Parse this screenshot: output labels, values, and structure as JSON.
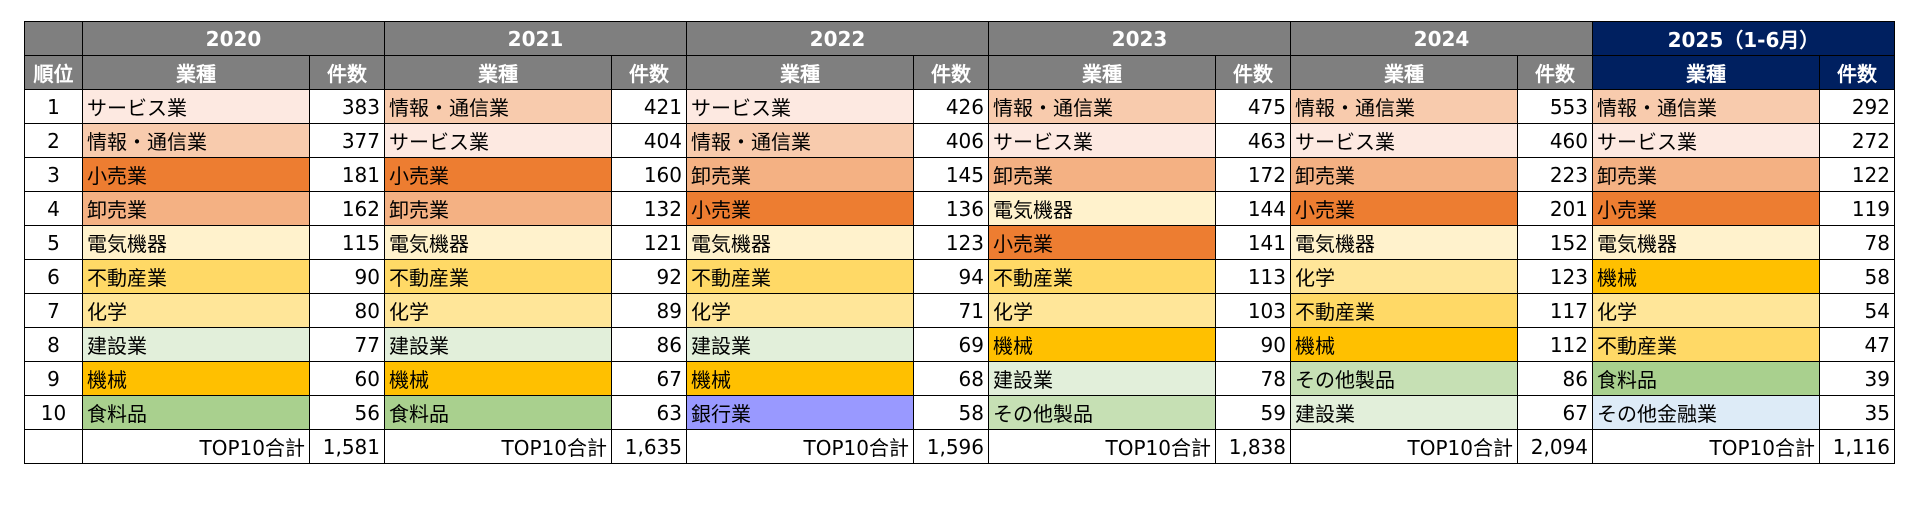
{
  "colors": {
    "サービス業": "#fde9e1",
    "情報・通信業": "#f8cbad",
    "小売業": "#ed7d31",
    "卸売業": "#f4b183",
    "電気機器": "#fff2cc",
    "不動産業": "#ffd966",
    "化学": "#ffe699",
    "建設業": "#e2efda",
    "機械": "#ffc000",
    "食料品": "#a9d08e",
    "銀行業": "#9999ff",
    "その他製品": "#c6e0b4",
    "その他金融業": "#ddebf7"
  },
  "table": {
    "header": {
      "rank_label": "順位",
      "industry_label": "業種",
      "count_label": "件数",
      "total_label": "TOP10合計"
    },
    "years": [
      {
        "label": "2020",
        "highlight": false,
        "total": "1,581",
        "rows": [
          [
            "サービス業",
            "383"
          ],
          [
            "情報・通信業",
            "377"
          ],
          [
            "小売業",
            "181"
          ],
          [
            "卸売業",
            "162"
          ],
          [
            "電気機器",
            "115"
          ],
          [
            "不動産業",
            "90"
          ],
          [
            "化学",
            "80"
          ],
          [
            "建設業",
            "77"
          ],
          [
            "機械",
            "60"
          ],
          [
            "食料品",
            "56"
          ]
        ]
      },
      {
        "label": "2021",
        "highlight": false,
        "total": "1,635",
        "rows": [
          [
            "情報・通信業",
            "421"
          ],
          [
            "サービス業",
            "404"
          ],
          [
            "小売業",
            "160"
          ],
          [
            "卸売業",
            "132"
          ],
          [
            "電気機器",
            "121"
          ],
          [
            "不動産業",
            "92"
          ],
          [
            "化学",
            "89"
          ],
          [
            "建設業",
            "86"
          ],
          [
            "機械",
            "67"
          ],
          [
            "食料品",
            "63"
          ]
        ]
      },
      {
        "label": "2022",
        "highlight": false,
        "total": "1,596",
        "rows": [
          [
            "サービス業",
            "426"
          ],
          [
            "情報・通信業",
            "406"
          ],
          [
            "卸売業",
            "145"
          ],
          [
            "小売業",
            "136"
          ],
          [
            "電気機器",
            "123"
          ],
          [
            "不動産業",
            "94"
          ],
          [
            "化学",
            "71"
          ],
          [
            "建設業",
            "69"
          ],
          [
            "機械",
            "68"
          ],
          [
            "銀行業",
            "58"
          ]
        ]
      },
      {
        "label": "2023",
        "highlight": false,
        "total": "1,838",
        "rows": [
          [
            "情報・通信業",
            "475"
          ],
          [
            "サービス業",
            "463"
          ],
          [
            "卸売業",
            "172"
          ],
          [
            "電気機器",
            "144"
          ],
          [
            "小売業",
            "141"
          ],
          [
            "不動産業",
            "113"
          ],
          [
            "化学",
            "103"
          ],
          [
            "機械",
            "90"
          ],
          [
            "建設業",
            "78"
          ],
          [
            "その他製品",
            "59"
          ]
        ]
      },
      {
        "label": "2024",
        "highlight": false,
        "total": "2,094",
        "rows": [
          [
            "情報・通信業",
            "553"
          ],
          [
            "サービス業",
            "460"
          ],
          [
            "卸売業",
            "223"
          ],
          [
            "小売業",
            "201"
          ],
          [
            "電気機器",
            "152"
          ],
          [
            "化学",
            "123"
          ],
          [
            "不動産業",
            "117"
          ],
          [
            "機械",
            "112"
          ],
          [
            "その他製品",
            "86"
          ],
          [
            "建設業",
            "67"
          ]
        ]
      },
      {
        "label": "2025（1-6月）",
        "highlight": true,
        "total": "1,116",
        "rows": [
          [
            "情報・通信業",
            "292"
          ],
          [
            "サービス業",
            "272"
          ],
          [
            "卸売業",
            "122"
          ],
          [
            "小売業",
            "119"
          ],
          [
            "電気機器",
            "78"
          ],
          [
            "機械",
            "58"
          ],
          [
            "化学",
            "54"
          ],
          [
            "不動産業",
            "47"
          ],
          [
            "食料品",
            "39"
          ],
          [
            "その他金融業",
            "35"
          ]
        ]
      }
    ]
  }
}
